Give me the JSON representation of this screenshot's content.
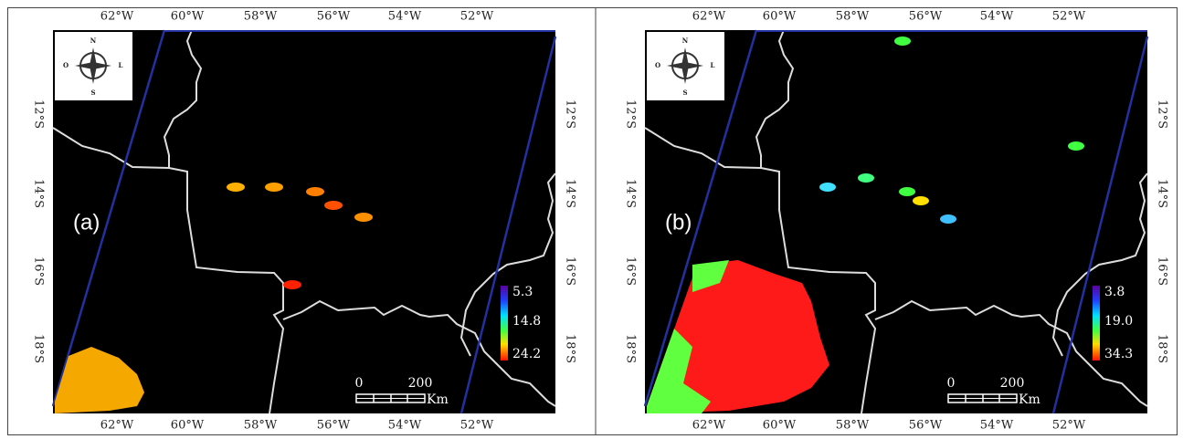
{
  "panels": [
    {
      "label": "(a)",
      "lon_labels_top": [
        "62°W",
        "60°W",
        "58°W",
        "56°W",
        "54°W",
        "52°W"
      ],
      "lon_labels_bottom": [
        "62°W",
        "60°W",
        "58°W",
        "56°W",
        "54°W",
        "52°W"
      ],
      "lat_labels_left": [
        "12°S",
        "14°S",
        "16°S",
        "18°S"
      ],
      "lat_labels_right": [
        "12°S",
        "14°S",
        "16°S",
        "18°S"
      ],
      "colorbar": [
        "5.3",
        "14.8",
        "24.2"
      ],
      "scale": {
        "start": "0",
        "end": "200",
        "unit": "Km"
      },
      "compass": {
        "n": "N",
        "w": "O",
        "e": "L",
        "s": "S"
      }
    },
    {
      "label": "(b)",
      "lon_labels_top": [
        "62°W",
        "60°W",
        "58°W",
        "56°W",
        "54°W",
        "52°W"
      ],
      "lon_labels_bottom": [
        "62°W",
        "60°W",
        "58°W",
        "56°W",
        "54°W",
        "52°W"
      ],
      "lat_labels_left": [
        "12°S",
        "14°S",
        "16°S",
        "18°S"
      ],
      "lat_labels_right": [
        "12°S",
        "14°S",
        "16°S",
        "18°S"
      ],
      "colorbar": [
        "3.8",
        "19.0",
        "34.3"
      ],
      "scale": {
        "start": "0",
        "end": "200",
        "unit": "Km"
      },
      "compass": {
        "n": "N",
        "w": "O",
        "e": "L",
        "s": "S"
      }
    }
  ]
}
